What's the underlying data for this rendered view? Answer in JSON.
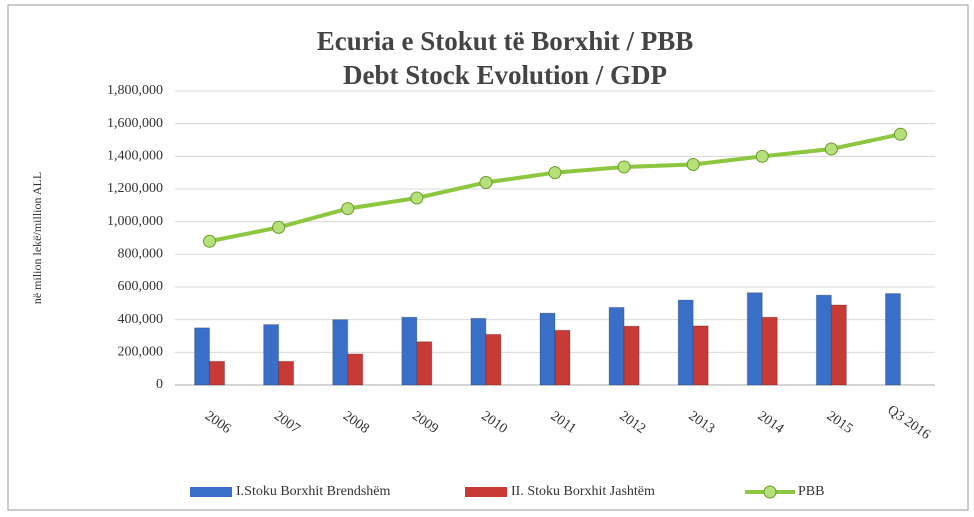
{
  "chart_data": {
    "type": "bar",
    "title": [
      "Ecuria e Stokut të Borxhit / PBB",
      "Debt Stock Evolution / GDP"
    ],
    "y_label": "në milion lekë/million ALL",
    "categories": [
      "2006",
      "2007",
      "2008",
      "2009",
      "2010",
      "2011",
      "2012",
      "2013",
      "2014",
      "2015",
      "Q3 2016"
    ],
    "series": [
      {
        "name": "I.Stoku Borxhit Brendshëm",
        "color": "#3a6fc8",
        "values": [
          350000,
          370000,
          400000,
          415000,
          408000,
          440000,
          475000,
          520000,
          565000,
          550000,
          560000
        ]
      },
      {
        "name": "II. Stoku Borxhit Jashtëm",
        "color": "#c83a36",
        "values": [
          145000,
          145000,
          190000,
          265000,
          310000,
          335000,
          360000,
          362000,
          415000,
          490000,
          null
        ]
      },
      {
        "name": "PBB",
        "type": "line",
        "color": "#8dc63f",
        "values": [
          880000,
          965000,
          1080000,
          1145000,
          1240000,
          1300000,
          1335000,
          1350000,
          1400000,
          1445000,
          1535000
        ]
      }
    ],
    "ylim": [
      0,
      1800000
    ],
    "yticks": [
      0,
      {
        "value": 200000,
        "label": "200,000"
      },
      {
        "value": 400000,
        "label": "400,000"
      },
      {
        "value": 600000,
        "label": "600,000"
      },
      {
        "value": 800000,
        "label": "800,000"
      },
      {
        "value": 1000000,
        "label": "1,000,000"
      },
      {
        "value": 1200000,
        "label": "1,200,000"
      },
      {
        "value": 1400000,
        "label": "1,400,000"
      },
      {
        "value": 1600000,
        "label": "1,600,000"
      },
      {
        "value": 1800000,
        "label": "1,800,000"
      }
    ],
    "grid": true,
    "legend": "bottom"
  }
}
